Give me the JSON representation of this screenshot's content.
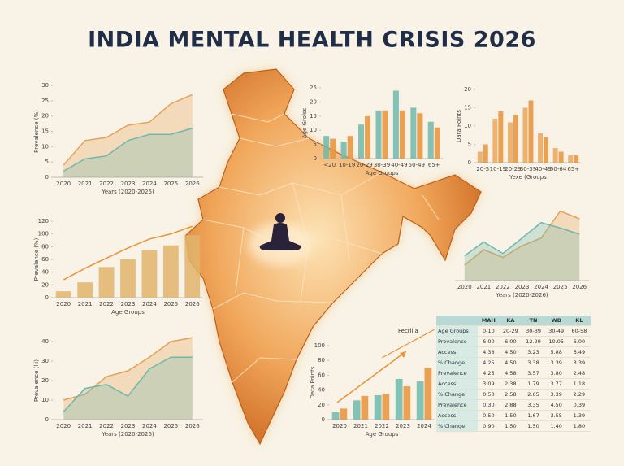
{
  "title": "INDIA MENTAL HEALTH CRISIS 2026",
  "chart_data": [
    {
      "type": "area",
      "ylabel": "Prevalence (%)",
      "xlabel": "Years (2020-2026)",
      "categories": [
        "2020",
        "2021",
        "2022",
        "2023",
        "2024",
        "2025",
        "2026"
      ],
      "ylim": [
        0,
        30
      ],
      "yticks": [
        0,
        5,
        10,
        15,
        20,
        25,
        30
      ],
      "grid": false,
      "series": [
        {
          "color": "#e3a25a",
          "values": [
            4,
            12,
            13,
            17,
            18,
            24,
            27
          ]
        },
        {
          "color": "#6fb8ac",
          "values": [
            2,
            6,
            7,
            12,
            14,
            14,
            16
          ]
        }
      ]
    },
    {
      "type": "bar",
      "ylabel": "Age Grolss",
      "xlabel": "Age Groups",
      "categories": [
        "<20",
        "10-19",
        "20-29",
        "30-39",
        "40-49",
        "50-49",
        "65+"
      ],
      "ylim": [
        0,
        25
      ],
      "yticks": [
        0,
        5,
        10,
        15,
        20,
        25
      ],
      "grid": false,
      "series": [
        {
          "color": "#6fb8ac",
          "values": [
            8,
            6,
            12,
            17,
            24,
            18,
            13
          ]
        },
        {
          "color": "#e8923a",
          "values": [
            7,
            8,
            15,
            17,
            17,
            16,
            11
          ]
        }
      ]
    },
    {
      "type": "bar",
      "ylabel": "Data Points",
      "xlabel": "Yexe (Groups",
      "categories": [
        "20-5",
        "10-19",
        "20-29",
        "30-39",
        "40-49",
        "50-64",
        "65+"
      ],
      "ylim": [
        0,
        20
      ],
      "yticks": [
        0,
        5,
        10,
        15,
        20
      ],
      "grid": false,
      "series": [
        {
          "color": "#eba55a",
          "values": [
            3,
            12,
            11,
            15,
            8,
            4,
            2
          ]
        },
        {
          "color": "#e8923a",
          "values": [
            5,
            14,
            13,
            17,
            7,
            3,
            2
          ]
        }
      ]
    },
    {
      "type": "bar",
      "ylabel": "Prevalence (%)",
      "xlabel": "Age Groups",
      "categories": [
        "2020",
        "2021",
        "2022",
        "2023",
        "2024",
        "2025",
        "2026"
      ],
      "ylim": [
        0,
        120
      ],
      "yticks": [
        0,
        20,
        40,
        60,
        80,
        100,
        120
      ],
      "grid": false,
      "series": [
        {
          "color": "#e2b46c",
          "values": [
            10,
            24,
            48,
            60,
            74,
            82,
            98
          ]
        },
        {
          "color": "#e8923a",
          "type": "line",
          "values": [
            28,
            46,
            62,
            78,
            92,
            100,
            112
          ]
        }
      ]
    },
    {
      "type": "area",
      "xlabel": "Years (2020-2026)",
      "categories": [
        "2020",
        "2021",
        "2022",
        "2023",
        "2024",
        "2025",
        "2026"
      ],
      "ylim": [
        0,
        100
      ],
      "grid": false,
      "series": [
        {
          "color": "#e3a25a",
          "values": [
            20,
            40,
            30,
            45,
            55,
            90,
            80
          ]
        },
        {
          "color": "#6fb8ac",
          "values": [
            32,
            50,
            35,
            55,
            75,
            68,
            60
          ]
        }
      ]
    },
    {
      "type": "area",
      "ylabel": "Prevalence (lii)",
      "xlabel": "Years (2020-2026)",
      "categories": [
        "2020",
        "2021",
        "2022",
        "2023",
        "2024",
        "2025",
        "2026"
      ],
      "ylim": [
        0,
        40
      ],
      "yticks": [
        0,
        10,
        20,
        30,
        40
      ],
      "grid": false,
      "series": [
        {
          "color": "#e3a25a",
          "values": [
            10,
            13,
            22,
            25,
            32,
            40,
            42
          ]
        },
        {
          "color": "#6fb8ac",
          "values": [
            4,
            16,
            18,
            12,
            26,
            32,
            32
          ]
        }
      ]
    },
    {
      "type": "bar",
      "ylabel": "Data Points",
      "xlabel": "Age Groups",
      "categories": [
        "2020",
        "2021",
        "2022",
        "2023",
        "2024"
      ],
      "ylim": [
        0,
        100
      ],
      "yticks": [
        0,
        20,
        40,
        60,
        80,
        100
      ],
      "grid": false,
      "series": [
        {
          "color": "#6fb8ac",
          "values": [
            10,
            26,
            33,
            55,
            52
          ]
        },
        {
          "color": "#e8923a",
          "values": [
            15,
            32,
            35,
            45,
            70
          ]
        }
      ]
    }
  ],
  "table": {
    "side_label": "Fecrilia",
    "header": [
      "",
      "MAH",
      "KA",
      "TN",
      "WB",
      "KL"
    ],
    "rows": [
      [
        "Age Groups",
        "0-10",
        "20-29",
        "30-39",
        "30-49",
        "60-58"
      ],
      [
        "Prevalence",
        "6.00",
        "6.00",
        "12.29",
        "10.05",
        "6.00"
      ],
      [
        "Access",
        "4.38",
        "4.50",
        "3.23",
        "5.88",
        "6.49"
      ],
      [
        "% Change",
        "4.25",
        "4.50",
        "3.38",
        "3.39",
        "3.39"
      ],
      [
        "Prevalence",
        "4.25",
        "4.58",
        "3.57",
        "3.80",
        "2.48"
      ],
      [
        "Access",
        "3.09",
        "2.38",
        "1.79",
        "3.77",
        "1.18"
      ],
      [
        "% Change",
        "0.50",
        "2.58",
        "2.65",
        "3.39",
        "2.29"
      ],
      [
        "Prevalence",
        "0.30",
        "2.88",
        "3.35",
        "4.50",
        "0.39"
      ],
      [
        "Access",
        "0.50",
        "1.50",
        "1.67",
        "3.55",
        "1.39"
      ],
      [
        "% Change",
        "0.90",
        "1.50",
        "1.50",
        "1.40",
        "1.80"
      ]
    ]
  }
}
